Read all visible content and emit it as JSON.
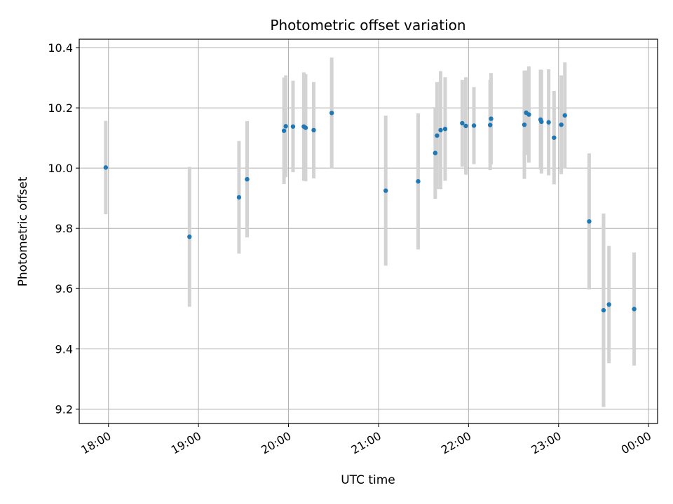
{
  "chart_data": {
    "type": "scatter",
    "title": "Photometric offset variation",
    "xlabel": "UTC time",
    "ylabel": "Photometric offset",
    "x_unit": "hours since 18:00 UTC",
    "xlim": [
      -0.325,
      6.1
    ],
    "ylim": [
      9.152,
      10.428
    ],
    "grid": true,
    "x_ticks": [
      {
        "x": 0,
        "label": "18:00"
      },
      {
        "x": 1,
        "label": "19:00"
      },
      {
        "x": 2,
        "label": "20:00"
      },
      {
        "x": 3,
        "label": "21:00"
      },
      {
        "x": 4,
        "label": "22:00"
      },
      {
        "x": 5,
        "label": "23:00"
      },
      {
        "x": 6,
        "label": "00:00"
      }
    ],
    "y_ticks": [
      {
        "y": 9.2,
        "label": "9.2"
      },
      {
        "y": 9.4,
        "label": "9.4"
      },
      {
        "y": 9.6,
        "label": "9.6"
      },
      {
        "y": 9.8,
        "label": "9.8"
      },
      {
        "y": 10.0,
        "label": "10.0"
      },
      {
        "y": 10.2,
        "label": "10.2"
      },
      {
        "y": 10.4,
        "label": "10.4"
      }
    ],
    "marker_color": "#1f77b4",
    "errorbar_color": "#d3d3d3",
    "points": [
      {
        "x": -0.03,
        "y": 10.002,
        "err": 0.155
      },
      {
        "x": 0.9,
        "y": 9.772,
        "err": 0.232
      },
      {
        "x": 1.45,
        "y": 9.903,
        "err": 0.187
      },
      {
        "x": 1.54,
        "y": 9.963,
        "err": 0.193
      },
      {
        "x": 1.95,
        "y": 10.124,
        "err": 0.177
      },
      {
        "x": 1.97,
        "y": 10.139,
        "err": 0.169
      },
      {
        "x": 2.05,
        "y": 10.138,
        "err": 0.152
      },
      {
        "x": 2.17,
        "y": 10.138,
        "err": 0.18
      },
      {
        "x": 2.19,
        "y": 10.134,
        "err": 0.178
      },
      {
        "x": 2.28,
        "y": 10.126,
        "err": 0.16
      },
      {
        "x": 2.48,
        "y": 10.183,
        "err": 0.184
      },
      {
        "x": 3.08,
        "y": 9.925,
        "err": 0.249
      },
      {
        "x": 3.44,
        "y": 9.956,
        "err": 0.226
      },
      {
        "x": 3.63,
        "y": 10.05,
        "err": 0.152
      },
      {
        "x": 3.65,
        "y": 10.108,
        "err": 0.178
      },
      {
        "x": 3.69,
        "y": 10.126,
        "err": 0.196
      },
      {
        "x": 3.74,
        "y": 10.13,
        "err": 0.172
      },
      {
        "x": 3.93,
        "y": 10.149,
        "err": 0.144
      },
      {
        "x": 3.97,
        "y": 10.14,
        "err": 0.162
      },
      {
        "x": 4.06,
        "y": 10.141,
        "err": 0.128
      },
      {
        "x": 4.24,
        "y": 10.143,
        "err": 0.15
      },
      {
        "x": 4.25,
        "y": 10.164,
        "err": 0.152
      },
      {
        "x": 4.62,
        "y": 10.144,
        "err": 0.18
      },
      {
        "x": 4.64,
        "y": 10.184,
        "err": 0.14
      },
      {
        "x": 4.67,
        "y": 10.178,
        "err": 0.16
      },
      {
        "x": 4.8,
        "y": 10.161,
        "err": 0.166
      },
      {
        "x": 4.81,
        "y": 10.154,
        "err": 0.172
      },
      {
        "x": 4.89,
        "y": 10.152,
        "err": 0.176
      },
      {
        "x": 4.95,
        "y": 10.101,
        "err": 0.155
      },
      {
        "x": 5.03,
        "y": 10.144,
        "err": 0.164
      },
      {
        "x": 5.07,
        "y": 10.175,
        "err": 0.176
      },
      {
        "x": 5.34,
        "y": 9.823,
        "err": 0.226
      },
      {
        "x": 5.5,
        "y": 9.528,
        "err": 0.321
      },
      {
        "x": 5.56,
        "y": 9.547,
        "err": 0.195
      },
      {
        "x": 5.84,
        "y": 9.532,
        "err": 0.188
      }
    ]
  }
}
